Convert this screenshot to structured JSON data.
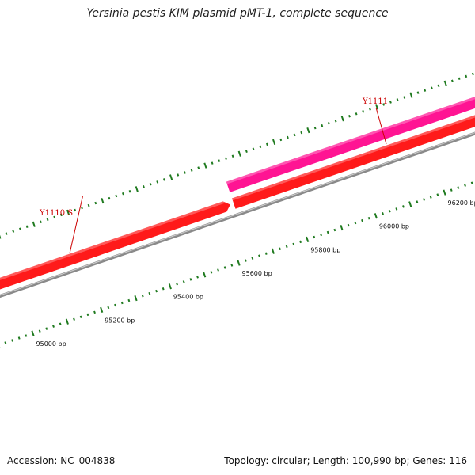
{
  "title": "Yersinia pestis KIM plasmid pMT-1, complete sequence",
  "footer": {
    "accession": "Accession: NC_004838",
    "summary": "Topology: circular; Length: 100,990 bp; Genes: 116"
  },
  "colors": {
    "backbone": "#8a8a8a",
    "forward_gene": "#ff1a1a",
    "highlight_gene": "#ff1493",
    "gene_label": "#cc0000",
    "tick": "#1f7a1f"
  },
  "genes": [
    {
      "label": "Y1110.S",
      "start": 94800,
      "end": 95620,
      "strand": "+",
      "color": "#ff1a1a"
    },
    {
      "label": "Y1111",
      "start": 95640,
      "end": 96400,
      "strand": "+",
      "color": "#ff1a1a"
    },
    {
      "label": "",
      "start": 95640,
      "end": 96400,
      "strand": "+",
      "color": "#ff1493"
    }
  ],
  "ruler": {
    "labels": [
      "95000 bp",
      "95200 bp",
      "95400 bp",
      "95600 bp",
      "95800 bp",
      "96000 bp",
      "96200 bp"
    ],
    "positions": [
      95000,
      95200,
      95400,
      95600,
      95800,
      96000,
      96200
    ]
  }
}
